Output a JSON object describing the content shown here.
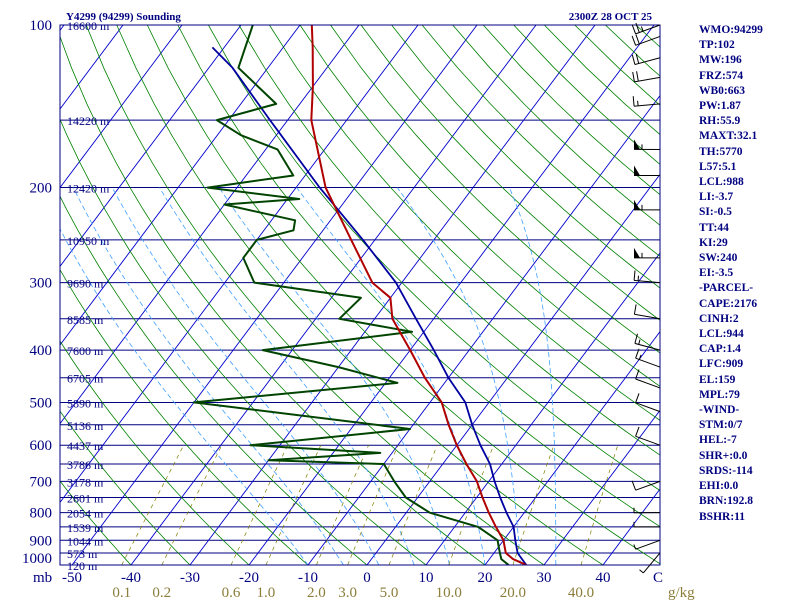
{
  "header": {
    "station_title": "Y4299 (94299) Sounding",
    "valid_time": "2300Z 28 OCT 25"
  },
  "y_axis_unit_label": "mb",
  "x_axis_unit_label": "g/kg",
  "colors": {
    "frame": "#000080",
    "isobars": "#000080",
    "isotherms": "#0000cc",
    "dry_adiabats": "#008000",
    "moist_adiabats": "#40a0ff",
    "mixing_ratio": "#808000",
    "temperature": "#b00000",
    "dewpoint": "#004400",
    "parcel": "#0000a0",
    "text": "#000080",
    "mixing_ratio_text": "#8b7d3a"
  },
  "chart_data": {
    "type": "skew-t",
    "title": "Y4299 (94299) Sounding",
    "valid_time": "2300Z 28 OCT 25",
    "pressure_levels_mb": [
      100,
      200,
      300,
      400,
      500,
      600,
      700,
      800,
      900,
      1000
    ],
    "x_tick_labels": [
      "-50",
      "-40",
      "-30",
      "-20",
      "-10",
      "0",
      "10",
      "20",
      "30",
      "40",
      "C"
    ],
    "mixing_ratio_labels": [
      "0.1",
      "0.2",
      "0.6",
      "1.0",
      "2.0",
      "3.0",
      "5.0",
      "10.0",
      "20.0",
      "40.0"
    ],
    "height_labels": [
      {
        "p": 100,
        "label": "16600 m"
      },
      {
        "p": 150,
        "label": "14220 m"
      },
      {
        "p": 200,
        "label": "12420 m"
      },
      {
        "p": 250,
        "label": "10950 m"
      },
      {
        "p": 300,
        "label": "9690 m"
      },
      {
        "p": 350,
        "label": "8585 m"
      },
      {
        "p": 400,
        "label": "7600 m"
      },
      {
        "p": 450,
        "label": "6705 m"
      },
      {
        "p": 500,
        "label": "5890 m"
      },
      {
        "p": 550,
        "label": "5136 m"
      },
      {
        "p": 600,
        "label": "4437 m"
      },
      {
        "p": 650,
        "label": "3786 m"
      },
      {
        "p": 700,
        "label": "3178 m"
      },
      {
        "p": 750,
        "label": "2601 m"
      },
      {
        "p": 800,
        "label": "2054 m"
      },
      {
        "p": 850,
        "label": "1539 m"
      },
      {
        "p": 900,
        "label": "1044 m"
      },
      {
        "p": 950,
        "label": "573 m"
      },
      {
        "p": 1000,
        "label": "120 m"
      }
    ],
    "temperature_profile": [
      {
        "p": 1000,
        "t": 27
      },
      {
        "p": 975,
        "t": 24
      },
      {
        "p": 950,
        "t": 22
      },
      {
        "p": 925,
        "t": 21
      },
      {
        "p": 900,
        "t": 20
      },
      {
        "p": 850,
        "t": 17
      },
      {
        "p": 800,
        "t": 14
      },
      {
        "p": 750,
        "t": 11
      },
      {
        "p": 700,
        "t": 8
      },
      {
        "p": 650,
        "t": 4
      },
      {
        "p": 600,
        "t": 0
      },
      {
        "p": 550,
        "t": -4
      },
      {
        "p": 500,
        "t": -8
      },
      {
        "p": 450,
        "t": -14
      },
      {
        "p": 400,
        "t": -20
      },
      {
        "p": 350,
        "t": -27
      },
      {
        "p": 320,
        "t": -30
      },
      {
        "p": 300,
        "t": -35
      },
      {
        "p": 250,
        "t": -44
      },
      {
        "p": 200,
        "t": -55
      },
      {
        "p": 150,
        "t": -66
      },
      {
        "p": 130,
        "t": -70
      },
      {
        "p": 110,
        "t": -75
      },
      {
        "p": 100,
        "t": -78
      }
    ],
    "dewpoint_profile": [
      {
        "p": 1000,
        "td": 24
      },
      {
        "p": 975,
        "td": 22
      },
      {
        "p": 950,
        "td": 21
      },
      {
        "p": 925,
        "td": 20
      },
      {
        "p": 900,
        "td": 19
      },
      {
        "p": 850,
        "td": 14
      },
      {
        "p": 800,
        "td": 4
      },
      {
        "p": 750,
        "td": -2
      },
      {
        "p": 700,
        "td": -6
      },
      {
        "p": 650,
        "td": -10
      },
      {
        "p": 640,
        "td": -30
      },
      {
        "p": 620,
        "td": -12
      },
      {
        "p": 600,
        "td": -35
      },
      {
        "p": 560,
        "td": -10
      },
      {
        "p": 500,
        "td": -50
      },
      {
        "p": 460,
        "td": -18
      },
      {
        "p": 430,
        "td": -30
      },
      {
        "p": 400,
        "td": -45
      },
      {
        "p": 370,
        "td": -22
      },
      {
        "p": 350,
        "td": -36
      },
      {
        "p": 320,
        "td": -35
      },
      {
        "p": 300,
        "td": -55
      },
      {
        "p": 270,
        "td": -60
      },
      {
        "p": 250,
        "td": -60
      },
      {
        "p": 240,
        "td": -55
      },
      {
        "p": 230,
        "td": -56
      },
      {
        "p": 215,
        "td": -70
      },
      {
        "p": 210,
        "td": -58
      },
      {
        "p": 200,
        "td": -75
      },
      {
        "p": 190,
        "td": -62
      },
      {
        "p": 170,
        "td": -68
      },
      {
        "p": 160,
        "td": -76
      },
      {
        "p": 150,
        "td": -82
      },
      {
        "p": 140,
        "td": -74
      },
      {
        "p": 120,
        "td": -85
      },
      {
        "p": 100,
        "td": -88
      }
    ],
    "parcel_profile": [
      {
        "p": 1000,
        "t": 27
      },
      {
        "p": 950,
        "t": 24
      },
      {
        "p": 900,
        "t": 22
      },
      {
        "p": 850,
        "t": 20
      },
      {
        "p": 800,
        "t": 17
      },
      {
        "p": 750,
        "t": 14
      },
      {
        "p": 700,
        "t": 11
      },
      {
        "p": 650,
        "t": 8
      },
      {
        "p": 600,
        "t": 4
      },
      {
        "p": 550,
        "t": 0
      },
      {
        "p": 500,
        "t": -4
      },
      {
        "p": 450,
        "t": -10
      },
      {
        "p": 400,
        "t": -16
      },
      {
        "p": 350,
        "t": -23
      },
      {
        "p": 300,
        "t": -31
      },
      {
        "p": 250,
        "t": -42
      },
      {
        "p": 200,
        "t": -56
      },
      {
        "p": 150,
        "t": -73
      },
      {
        "p": 120,
        "t": -86
      },
      {
        "p": 110,
        "t": -92
      }
    ],
    "wind_barbs": [
      {
        "p": 100,
        "dir": 250,
        "kt": 25
      },
      {
        "p": 105,
        "dir": 250,
        "kt": 20
      },
      {
        "p": 115,
        "dir": 255,
        "kt": 20
      },
      {
        "p": 125,
        "dir": 260,
        "kt": 20
      },
      {
        "p": 140,
        "dir": 265,
        "kt": 15
      },
      {
        "p": 170,
        "dir": 270,
        "kt": 55
      },
      {
        "p": 190,
        "dir": 270,
        "kt": 50
      },
      {
        "p": 220,
        "dir": 270,
        "kt": 55
      },
      {
        "p": 270,
        "dir": 270,
        "kt": 55
      },
      {
        "p": 300,
        "dir": 275,
        "kt": 15
      },
      {
        "p": 350,
        "dir": 280,
        "kt": 10
      },
      {
        "p": 400,
        "dir": 285,
        "kt": 15
      },
      {
        "p": 430,
        "dir": 290,
        "kt": 15
      },
      {
        "p": 470,
        "dir": 290,
        "kt": 10
      },
      {
        "p": 520,
        "dir": 290,
        "kt": 10
      },
      {
        "p": 600,
        "dir": 290,
        "kt": 10
      },
      {
        "p": 700,
        "dir": 250,
        "kt": 10
      },
      {
        "p": 800,
        "dir": 270,
        "kt": 5
      },
      {
        "p": 850,
        "dir": 270,
        "kt": 5
      },
      {
        "p": 900,
        "dir": 250,
        "kt": 5
      },
      {
        "p": 950,
        "dir": 220,
        "kt": 5
      }
    ]
  },
  "indices": [
    "WMO:94299",
    "TP:102",
    "MW:196",
    "FRZ:574",
    "WB0:663",
    "PW:1.87",
    "RH:55.9",
    "MAXT:32.1",
    "TH:5770",
    "L57:5.1",
    "LCL:988",
    "LI:-3.7",
    "SI:-0.5",
    "TT:44",
    "KI:29",
    "SW:240",
    "EI:-3.5",
    "-PARCEL-",
    "CAPE:2176",
    "CINH:2",
    "LCL:944",
    "CAP:1.4",
    "LFC:909",
    "EL:159",
    "MPL:79",
    "-WIND-",
    "STM:0/7",
    "HEL:-7",
    "SHR+:0.0",
    "SRDS:-114",
    "EHI:0.0",
    "BRN:192.8",
    "BSHR:11"
  ]
}
